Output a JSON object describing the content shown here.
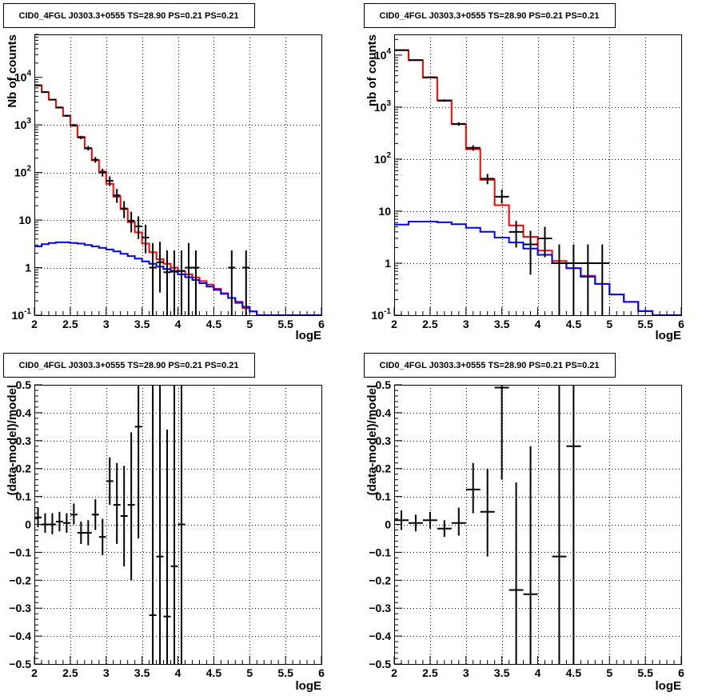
{
  "chart_data": [
    {
      "type": "histogram",
      "title": "CID0_4FGL J0303.3+0555 TS=28.90 PS=0.21 PS=0.21",
      "xlabel": "logE",
      "ylabel": "Nb of counts",
      "xlim": [
        2,
        6
      ],
      "ylim": [
        0.1,
        80000
      ],
      "ylog": true,
      "grid": true,
      "xticks": [
        "2",
        "2.5",
        "3",
        "3.5",
        "4",
        "4.5",
        "5",
        "5.5",
        "6"
      ],
      "yticks": [
        {
          "v": 0.1,
          "label": "10^-1"
        },
        {
          "v": 1,
          "label": "1"
        },
        {
          "v": 10,
          "label": "10"
        },
        {
          "v": 100,
          "label": "10^2"
        },
        {
          "v": 1000,
          "label": "10^3"
        },
        {
          "v": 10000,
          "label": "10^4"
        }
      ],
      "series": [
        {
          "kind": "step",
          "color": "#ff0000",
          "edges": [
            2.0,
            2.1,
            2.2,
            2.3,
            2.4,
            2.5,
            2.6,
            2.7,
            2.8,
            2.9,
            3.0,
            3.1,
            3.2,
            3.3,
            3.4,
            3.5,
            3.6,
            3.7,
            3.8,
            3.9,
            4.0,
            4.1,
            4.2,
            4.3,
            4.4,
            4.5,
            4.6,
            4.7,
            4.8,
            4.9,
            5.0,
            5.1,
            5.2,
            5.3,
            5.4,
            5.5,
            5.6,
            5.7,
            5.8,
            5.9,
            6.0
          ],
          "values": [
            6800,
            4900,
            3400,
            2300,
            1550,
            960,
            560,
            320,
            180,
            105,
            58,
            31,
            17,
            9,
            5.5,
            3.2,
            2.1,
            1.5,
            1.2,
            1.0,
            0.85,
            0.72,
            0.62,
            0.52,
            0.44,
            0.36,
            0.29,
            0.23,
            0.18,
            0.14,
            0.12,
            0.1,
            0.1,
            0.1,
            0.1,
            0.1,
            0.1,
            0.1,
            0.1,
            0.1
          ]
        },
        {
          "kind": "step",
          "color": "#0000ff",
          "edges": [
            2.0,
            2.1,
            2.2,
            2.3,
            2.4,
            2.5,
            2.6,
            2.7,
            2.8,
            2.9,
            3.0,
            3.1,
            3.2,
            3.3,
            3.4,
            3.5,
            3.6,
            3.7,
            3.8,
            3.9,
            4.0,
            4.1,
            4.2,
            4.3,
            4.4,
            4.5,
            4.6,
            4.7,
            4.8,
            4.9,
            5.0,
            5.1,
            5.2,
            5.3,
            5.4,
            5.5,
            5.6,
            5.7,
            5.8,
            5.9,
            6.0
          ],
          "values": [
            2.8,
            3.1,
            3.3,
            3.4,
            3.4,
            3.3,
            3.2,
            3.0,
            2.8,
            2.6,
            2.4,
            2.2,
            1.95,
            1.75,
            1.55,
            1.35,
            1.2,
            1.05,
            0.93,
            0.82,
            0.72,
            0.63,
            0.55,
            0.47,
            0.4,
            0.34,
            0.28,
            0.23,
            0.19,
            0.15,
            0.12,
            0.1,
            0.1,
            0.1,
            0.1,
            0.1,
            0.1,
            0.1,
            0.1,
            0.1
          ]
        }
      ],
      "points": [
        {
          "x": 2.05,
          "xerr": 0.05,
          "y": 6800,
          "lo": 6640,
          "hi": 6960
        },
        {
          "x": 2.15,
          "xerr": 0.05,
          "y": 4900,
          "lo": 4760,
          "hi": 5040
        },
        {
          "x": 2.25,
          "xerr": 0.05,
          "y": 3400,
          "lo": 3280,
          "hi": 3520
        },
        {
          "x": 2.35,
          "xerr": 0.05,
          "y": 2330,
          "lo": 2230,
          "hi": 2430
        },
        {
          "x": 2.45,
          "xerr": 0.05,
          "y": 1560,
          "lo": 1480,
          "hi": 1640
        },
        {
          "x": 2.55,
          "xerr": 0.05,
          "y": 990,
          "lo": 930,
          "hi": 1050
        },
        {
          "x": 2.65,
          "xerr": 0.05,
          "y": 545,
          "lo": 500,
          "hi": 590
        },
        {
          "x": 2.75,
          "xerr": 0.05,
          "y": 325,
          "lo": 290,
          "hi": 360
        },
        {
          "x": 2.85,
          "xerr": 0.05,
          "y": 185,
          "lo": 160,
          "hi": 212
        },
        {
          "x": 2.95,
          "xerr": 0.05,
          "y": 100,
          "lo": 82,
          "hi": 120
        },
        {
          "x": 3.05,
          "xerr": 0.05,
          "y": 67,
          "lo": 52,
          "hi": 83
        },
        {
          "x": 3.15,
          "xerr": 0.05,
          "y": 33,
          "lo": 23,
          "hi": 45
        },
        {
          "x": 3.25,
          "xerr": 0.05,
          "y": 17.5,
          "lo": 11,
          "hi": 25
        },
        {
          "x": 3.35,
          "xerr": 0.05,
          "y": 9.7,
          "lo": 5.5,
          "hi": 15
        },
        {
          "x": 3.45,
          "xerr": 0.05,
          "y": 7.4,
          "lo": 4,
          "hi": 12
        },
        {
          "x": 3.55,
          "xerr": 0.05,
          "y": 4.3,
          "lo": 2,
          "hi": 8
        },
        {
          "x": 3.65,
          "xerr": 0.05,
          "y": 1.0,
          "lo": 0.1,
          "hi": 3.3
        },
        {
          "x": 3.75,
          "xerr": 0.05,
          "y": 1.3,
          "lo": 0.3,
          "hi": 3.5
        },
        {
          "x": 3.85,
          "xerr": 0.05,
          "y": 0.8,
          "lo": 0.1,
          "hi": 2.3
        },
        {
          "x": 3.95,
          "xerr": 0.05,
          "y": 0.85,
          "lo": 0.1,
          "hi": 2.3
        },
        {
          "x": 4.05,
          "xerr": 0.05,
          "y": 0.85,
          "lo": 0.1,
          "hi": 2.3
        },
        {
          "x": 4.15,
          "xerr": 0.05,
          "y": 1.0,
          "lo": 0.1,
          "hi": 3.3
        },
        {
          "x": 4.25,
          "xerr": 0.05,
          "y": 1.0,
          "lo": 0.1,
          "hi": 2.3
        },
        {
          "x": 4.75,
          "xerr": 0.05,
          "y": 1.0,
          "lo": 0.1,
          "hi": 2.3
        },
        {
          "x": 4.95,
          "xerr": 0.05,
          "y": 1.0,
          "lo": 0.1,
          "hi": 2.3
        }
      ]
    },
    {
      "type": "histogram",
      "title": "CID0_4FGL J0303.3+0555 TS=28.90 PS=0.21 PS=0.21",
      "xlabel": "logE",
      "ylabel": "nb of counts",
      "xlim": [
        2,
        6
      ],
      "ylim": [
        0.1,
        25000
      ],
      "ylog": true,
      "grid": true,
      "xticks": [
        "2",
        "2.5",
        "3",
        "3.5",
        "4",
        "4.5",
        "5",
        "5.5",
        "6"
      ],
      "yticks": [
        {
          "v": 0.1,
          "label": "10^-1"
        },
        {
          "v": 1,
          "label": "1"
        },
        {
          "v": 10,
          "label": "10"
        },
        {
          "v": 100,
          "label": "10^2"
        },
        {
          "v": 1000,
          "label": "10^3"
        },
        {
          "v": 10000,
          "label": "10^4"
        }
      ],
      "series": [
        {
          "kind": "step",
          "color": "#ff0000",
          "edges": [
            2.0,
            2.2,
            2.4,
            2.6,
            2.8,
            3.0,
            3.2,
            3.4,
            3.6,
            3.8,
            4.0,
            4.2,
            4.4,
            4.6,
            4.8,
            5.0,
            5.2,
            5.4,
            5.6,
            5.8,
            6.0
          ],
          "values": [
            12500,
            8000,
            3700,
            1350,
            470,
            155,
            40,
            13,
            5.3,
            3.2,
            1.75,
            1.1,
            0.8,
            0.57,
            0.4,
            0.25,
            0.18,
            0.12,
            0.1,
            0.1
          ]
        },
        {
          "kind": "step",
          "color": "#0000ff",
          "edges": [
            2.0,
            2.2,
            2.4,
            2.6,
            2.8,
            3.0,
            3.2,
            3.4,
            3.6,
            3.8,
            4.0,
            4.2,
            4.4,
            4.6,
            4.8,
            5.0,
            5.2,
            5.4,
            5.6,
            5.8,
            6.0
          ],
          "values": [
            5.5,
            6.3,
            6.3,
            6.1,
            5.6,
            4.8,
            4.0,
            3.1,
            2.5,
            1.9,
            1.45,
            1.0,
            0.8,
            0.55,
            0.4,
            0.25,
            0.18,
            0.12,
            0.1,
            0.1
          ]
        }
      ],
      "points": [
        {
          "x": 2.1,
          "xerr": 0.1,
          "y": 12400,
          "lo": 12200,
          "hi": 12600
        },
        {
          "x": 2.3,
          "xerr": 0.1,
          "y": 8000,
          "lo": 7850,
          "hi": 8150
        },
        {
          "x": 2.5,
          "xerr": 0.1,
          "y": 3750,
          "lo": 3650,
          "hi": 3850
        },
        {
          "x": 2.7,
          "xerr": 0.1,
          "y": 1330,
          "lo": 1270,
          "hi": 1400
        },
        {
          "x": 2.9,
          "xerr": 0.1,
          "y": 475,
          "lo": 440,
          "hi": 510
        },
        {
          "x": 3.1,
          "xerr": 0.1,
          "y": 165,
          "lo": 145,
          "hi": 185
        },
        {
          "x": 3.3,
          "xerr": 0.1,
          "y": 42,
          "lo": 33,
          "hi": 52
        },
        {
          "x": 3.5,
          "xerr": 0.1,
          "y": 19,
          "lo": 14,
          "hi": 26
        },
        {
          "x": 3.7,
          "xerr": 0.1,
          "y": 4.0,
          "lo": 2.0,
          "hi": 6.5
        },
        {
          "x": 3.9,
          "xerr": 0.1,
          "y": 2.3,
          "lo": 0.6,
          "hi": 4.2
        },
        {
          "x": 4.1,
          "xerr": 0.1,
          "y": 3.0,
          "lo": 1.3,
          "hi": 5.0
        },
        {
          "x": 4.3,
          "xerr": 0.1,
          "y": 1.0,
          "lo": 0.1,
          "hi": 2.3
        },
        {
          "x": 4.5,
          "xerr": 0.1,
          "y": 1.0,
          "lo": 0.1,
          "hi": 2.3
        },
        {
          "x": 4.7,
          "xerr": 0.1,
          "y": 1.0,
          "lo": 0.1,
          "hi": 2.3
        },
        {
          "x": 4.9,
          "xerr": 0.1,
          "y": 1.0,
          "lo": 0.1,
          "hi": 2.3
        }
      ]
    },
    {
      "type": "errorbar",
      "title": "CID0_4FGL J0303.3+0555 TS=28.90 PS=0.21 PS=0.21",
      "xlabel": "logE",
      "ylabel": "(data-model)/model",
      "xlim": [
        2,
        6
      ],
      "ylim": [
        -0.5,
        0.5
      ],
      "ylog": false,
      "grid": true,
      "xticks": [
        "2",
        "2.5",
        "3",
        "3.5",
        "4",
        "4.5",
        "5",
        "5.5",
        "6"
      ],
      "yticks": [
        {
          "v": -0.5,
          "label": "−0.5"
        },
        {
          "v": -0.4,
          "label": "−0.4"
        },
        {
          "v": -0.3,
          "label": "−0.3"
        },
        {
          "v": -0.2,
          "label": "−0.2"
        },
        {
          "v": -0.1,
          "label": "−0.1"
        },
        {
          "v": 0,
          "label": "0"
        },
        {
          "v": 0.1,
          "label": "0.1"
        },
        {
          "v": 0.2,
          "label": "0.2"
        },
        {
          "v": 0.3,
          "label": "0.3"
        },
        {
          "v": 0.4,
          "label": "0.4"
        },
        {
          "v": 0.5,
          "label": "0.5"
        }
      ],
      "series": [],
      "points": [
        {
          "x": 2.05,
          "xerr": 0.05,
          "y": 0.025,
          "lo": -0.01,
          "hi": 0.06
        },
        {
          "x": 2.15,
          "xerr": 0.05,
          "y": 0.0,
          "lo": -0.03,
          "hi": 0.04
        },
        {
          "x": 2.25,
          "xerr": 0.05,
          "y": 0.0,
          "lo": -0.035,
          "hi": 0.04
        },
        {
          "x": 2.35,
          "xerr": 0.05,
          "y": 0.01,
          "lo": -0.025,
          "hi": 0.045
        },
        {
          "x": 2.45,
          "xerr": 0.05,
          "y": 0.005,
          "lo": -0.03,
          "hi": 0.04
        },
        {
          "x": 2.55,
          "xerr": 0.05,
          "y": 0.035,
          "lo": 0.0,
          "hi": 0.075
        },
        {
          "x": 2.65,
          "xerr": 0.05,
          "y": -0.03,
          "lo": -0.07,
          "hi": 0.01
        },
        {
          "x": 2.75,
          "xerr": 0.05,
          "y": -0.03,
          "lo": -0.075,
          "hi": 0.015
        },
        {
          "x": 2.85,
          "xerr": 0.05,
          "y": 0.035,
          "lo": -0.02,
          "hi": 0.09
        },
        {
          "x": 2.95,
          "xerr": 0.05,
          "y": -0.045,
          "lo": -0.11,
          "hi": 0.02
        },
        {
          "x": 3.05,
          "xerr": 0.05,
          "y": 0.155,
          "lo": 0.07,
          "hi": 0.24
        },
        {
          "x": 3.15,
          "xerr": 0.05,
          "y": 0.07,
          "lo": -0.07,
          "hi": 0.22
        },
        {
          "x": 3.25,
          "xerr": 0.05,
          "y": 0.03,
          "lo": -0.15,
          "hi": 0.21
        },
        {
          "x": 3.35,
          "xerr": 0.05,
          "y": 0.07,
          "lo": -0.2,
          "hi": 0.33
        },
        {
          "x": 3.45,
          "xerr": 0.05,
          "y": 0.35,
          "lo": -0.05,
          "hi": 0.5
        },
        {
          "x": 3.65,
          "xerr": 0.05,
          "y": -0.325,
          "lo": -0.5,
          "hi": 0.5
        },
        {
          "x": 3.75,
          "xerr": 0.05,
          "y": -0.115,
          "lo": -0.5,
          "hi": 0.5
        },
        {
          "x": 3.85,
          "xerr": 0.05,
          "y": -0.33,
          "lo": -0.5,
          "hi": 0.34
        },
        {
          "x": 3.95,
          "xerr": 0.05,
          "y": -0.15,
          "lo": -0.5,
          "hi": 0.5
        },
        {
          "x": 4.05,
          "xerr": 0.05,
          "y": 0.0,
          "lo": -0.5,
          "hi": 0.5
        }
      ]
    },
    {
      "type": "errorbar",
      "title": "CID0_4FGL J0303.3+0555 TS=28.90 PS=0.21 PS=0.21",
      "xlabel": "logE",
      "ylabel": "(data-model)/model",
      "xlim": [
        2,
        6
      ],
      "ylim": [
        -0.5,
        0.5
      ],
      "ylog": false,
      "grid": true,
      "xticks": [
        "2",
        "2.5",
        "3",
        "3.5",
        "4",
        "4.5",
        "5",
        "5.5",
        "6"
      ],
      "yticks": [
        {
          "v": -0.5,
          "label": "−0.5"
        },
        {
          "v": -0.4,
          "label": "−0.4"
        },
        {
          "v": -0.3,
          "label": "−0.3"
        },
        {
          "v": -0.2,
          "label": "−0.2"
        },
        {
          "v": -0.1,
          "label": "−0.1"
        },
        {
          "v": 0,
          "label": "0"
        },
        {
          "v": 0.1,
          "label": "0.1"
        },
        {
          "v": 0.2,
          "label": "0.2"
        },
        {
          "v": 0.3,
          "label": "0.3"
        },
        {
          "v": 0.4,
          "label": "0.4"
        },
        {
          "v": 0.5,
          "label": "0.5"
        }
      ],
      "series": [],
      "points": [
        {
          "x": 2.1,
          "xerr": 0.1,
          "y": 0.015,
          "lo": -0.02,
          "hi": 0.05
        },
        {
          "x": 2.3,
          "xerr": 0.1,
          "y": 0.005,
          "lo": -0.025,
          "hi": 0.035
        },
        {
          "x": 2.5,
          "xerr": 0.1,
          "y": 0.015,
          "lo": -0.015,
          "hi": 0.045
        },
        {
          "x": 2.7,
          "xerr": 0.1,
          "y": -0.015,
          "lo": -0.045,
          "hi": 0.015
        },
        {
          "x": 2.9,
          "xerr": 0.1,
          "y": 0.005,
          "lo": -0.04,
          "hi": 0.06
        },
        {
          "x": 3.1,
          "xerr": 0.1,
          "y": 0.125,
          "lo": 0.04,
          "hi": 0.22
        },
        {
          "x": 3.3,
          "xerr": 0.1,
          "y": 0.045,
          "lo": -0.115,
          "hi": 0.2
        },
        {
          "x": 3.5,
          "xerr": 0.1,
          "y": 0.49,
          "lo": 0.16,
          "hi": 0.5
        },
        {
          "x": 3.7,
          "xerr": 0.1,
          "y": -0.235,
          "lo": -0.5,
          "hi": 0.15
        },
        {
          "x": 3.9,
          "xerr": 0.1,
          "y": -0.25,
          "lo": -0.5,
          "hi": 0.28
        },
        {
          "x": 4.3,
          "xerr": 0.1,
          "y": -0.115,
          "lo": -0.5,
          "hi": 0.5
        },
        {
          "x": 4.5,
          "xerr": 0.1,
          "y": 0.28,
          "lo": -0.5,
          "hi": 0.5
        }
      ]
    }
  ]
}
